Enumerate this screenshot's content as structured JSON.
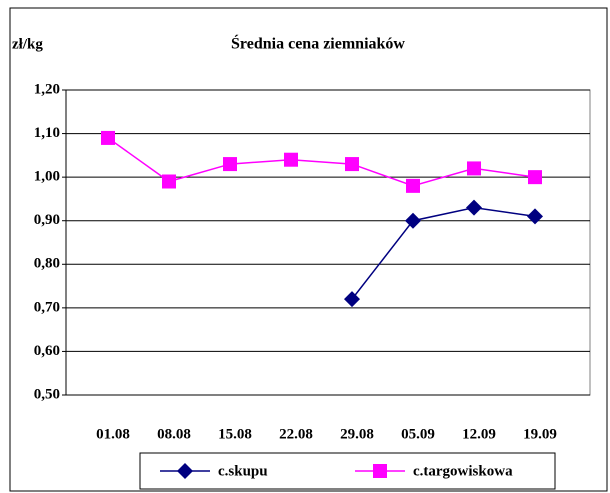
{
  "chart_data": {
    "type": "line",
    "title": "Średnia cena ziemniaków",
    "y_label": "zł/kg",
    "categories": [
      "01.08",
      "08.08",
      "15.08",
      "22.08",
      "29.08",
      "05.09",
      "12.09",
      "19.09"
    ],
    "series": [
      {
        "name": "c.skupu",
        "color": "#000080",
        "marker": "diamond",
        "values": [
          null,
          null,
          null,
          null,
          0.72,
          0.9,
          0.93,
          0.91
        ]
      },
      {
        "name": "c.targowiskowa",
        "color": "#ff00ff",
        "marker": "square",
        "values": [
          1.09,
          0.99,
          1.03,
          1.04,
          1.03,
          0.98,
          1.02,
          1.0
        ]
      }
    ],
    "ylim": [
      0.5,
      1.2
    ],
    "yticks": [
      {
        "value": 0.5,
        "label": "0,50"
      },
      {
        "value": 0.6,
        "label": "0,60"
      },
      {
        "value": 0.7,
        "label": "0,70"
      },
      {
        "value": 0.8,
        "label": "0,80"
      },
      {
        "value": 0.9,
        "label": "0,90"
      },
      {
        "value": 1.0,
        "label": "1,00"
      },
      {
        "value": 1.1,
        "label": "1,10"
      },
      {
        "value": 1.2,
        "label": "1,20"
      }
    ],
    "grid": true,
    "legend": "bottom"
  }
}
